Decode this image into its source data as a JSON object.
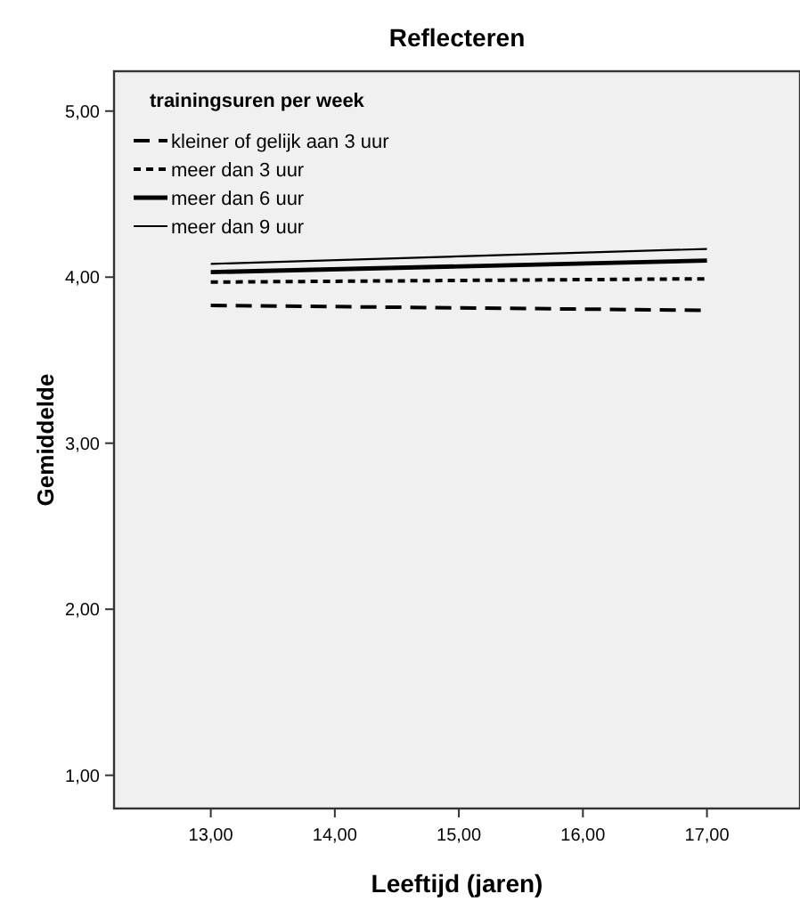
{
  "chart_data": {
    "type": "line",
    "title": "Reflecteren",
    "xlabel": "Leeftijd (jaren)",
    "ylabel": "Gemiddelde",
    "legend_title": "trainingsuren per week",
    "legend": "top left",
    "grid": false,
    "xlim": [
      12.22,
      17.75
    ],
    "xticks": [
      {
        "value": 13,
        "label": "13,00"
      },
      {
        "value": 14,
        "label": "14,00"
      },
      {
        "value": 15,
        "label": "15,00"
      },
      {
        "value": 16,
        "label": "16,00"
      },
      {
        "value": 17,
        "label": "17,00"
      }
    ],
    "ylim": [
      0.8,
      5.24
    ],
    "yticks": [
      {
        "value": 1,
        "label": "1,00"
      },
      {
        "value": 2,
        "label": "2,00"
      },
      {
        "value": 3,
        "label": "3,00"
      },
      {
        "value": 4,
        "label": "4,00"
      },
      {
        "value": 5,
        "label": "5,00"
      }
    ],
    "x": [
      13,
      17
    ],
    "series": [
      {
        "name": "kleiner of gelijk aan 3 uur",
        "color": "#000000",
        "values": [
          3.83,
          3.8
        ],
        "line_style": "dashed"
      },
      {
        "name": "meer dan 3 uur",
        "color": "#000000",
        "values": [
          3.97,
          3.99
        ],
        "line_style": "dotted"
      },
      {
        "name": "meer dan 6 uur",
        "color": "#000000",
        "values": [
          4.03,
          4.1
        ],
        "line_style": "solid"
      },
      {
        "name": "meer dan 9 uur",
        "color": "#000000",
        "values": [
          4.08,
          4.17
        ],
        "line_style": "solid"
      }
    ]
  }
}
